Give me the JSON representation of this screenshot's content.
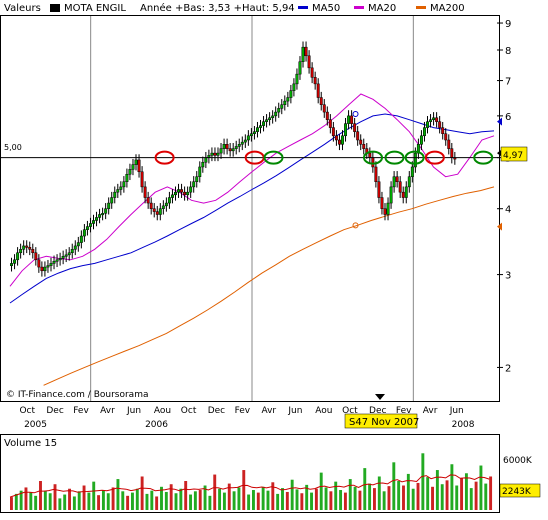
{
  "header": {
    "label": "Valeurs",
    "ticker": "MOTA ENGIL",
    "range_text": "Année +Bas: 3,53 +Haut: 5,94",
    "legend": [
      {
        "name": "MA50",
        "color": "#0000cc"
      },
      {
        "name": "MA20",
        "color": "#cc00cc"
      },
      {
        "name": "MA200",
        "color": "#e06000"
      }
    ]
  },
  "source": "© IT-Finance.com / Boursorama",
  "cursor_label": "S47 Nov 2007",
  "chart_data": [
    {
      "type": "candlestick",
      "title": "MOTA ENGIL",
      "scale": "log",
      "ylim": [
        1.75,
        9.2
      ],
      "y_ticks": [
        2,
        3,
        4,
        5,
        6,
        7,
        8,
        9
      ],
      "reference_line": {
        "value": 5.0,
        "label": "5,00"
      },
      "last_value": {
        "value": 4.97,
        "label": "4,97"
      },
      "right_markers": [
        {
          "value": 5.85,
          "color": "#0000cc"
        },
        {
          "value": 5.1,
          "color": "#000000"
        },
        {
          "value": 3.7,
          "color": "#e06000"
        }
      ],
      "x_month_labels": [
        "Oct",
        "Dec",
        "Fev",
        "Avr",
        "Jun",
        "Aou",
        "Oct",
        "Dec",
        "Fev",
        "Avr",
        "Jun",
        "Aou",
        "Oct",
        "Dec",
        "Fev",
        "Avr",
        "Jun"
      ],
      "x_year_labels": [
        "2005",
        "2006",
        "2007",
        "2008"
      ],
      "x_range_months": [
        0,
        33.5
      ],
      "grid": true,
      "price": [
        3.15,
        3.2,
        3.3,
        3.35,
        3.4,
        3.38,
        3.35,
        3.3,
        3.2,
        3.1,
        3.05,
        3.1,
        3.12,
        3.15,
        3.18,
        3.2,
        3.22,
        3.25,
        3.27,
        3.3,
        3.35,
        3.4,
        3.45,
        3.55,
        3.65,
        3.7,
        3.75,
        3.8,
        3.85,
        3.9,
        3.92,
        4.0,
        4.1,
        4.2,
        4.3,
        4.35,
        4.4,
        4.5,
        4.65,
        4.75,
        4.85,
        4.95,
        4.7,
        4.4,
        4.2,
        4.1,
        4.0,
        3.95,
        3.9,
        4.0,
        4.05,
        4.1,
        4.2,
        4.25,
        4.3,
        4.35,
        4.3,
        4.25,
        4.3,
        4.4,
        4.5,
        4.6,
        4.8,
        4.9,
        5.0,
        5.05,
        5.1,
        5.05,
        5.1,
        5.2,
        5.3,
        5.2,
        5.15,
        5.2,
        5.25,
        5.3,
        5.35,
        5.4,
        5.5,
        5.55,
        5.6,
        5.7,
        5.75,
        5.85,
        5.9,
        5.95,
        6.0,
        6.1,
        6.2,
        6.3,
        6.4,
        6.5,
        6.7,
        6.9,
        7.2,
        7.6,
        8.1,
        7.8,
        7.4,
        7.1,
        6.9,
        6.5,
        6.3,
        6.1,
        5.9,
        5.7,
        5.5,
        5.4,
        5.3,
        5.5,
        5.8,
        6.0,
        5.8,
        5.6,
        5.4,
        5.3,
        5.2,
        5.1,
        5.0,
        4.8,
        4.5,
        4.2,
        4.0,
        3.9,
        4.1,
        4.4,
        4.6,
        4.5,
        4.3,
        4.2,
        4.4,
        4.6,
        4.8,
        5.1,
        5.3,
        5.5,
        5.7,
        5.85,
        5.9,
        5.95,
        5.85,
        5.7,
        5.55,
        5.4,
        5.2,
        5.0,
        4.97
      ],
      "series": [
        {
          "name": "MA50",
          "color": "#0000cc",
          "values": [
            2.65,
            2.75,
            2.85,
            2.95,
            3.02,
            3.08,
            3.12,
            3.15,
            3.2,
            3.25,
            3.3,
            3.38,
            3.46,
            3.55,
            3.65,
            3.75,
            3.85,
            3.97,
            4.1,
            4.22,
            4.35,
            4.48,
            4.62,
            4.78,
            4.95,
            5.12,
            5.3,
            5.5,
            5.68,
            5.85,
            6.0,
            6.05,
            6.0,
            5.9,
            5.8,
            5.7,
            5.65,
            5.6,
            5.55,
            5.6,
            5.62
          ]
        },
        {
          "name": "MA20",
          "color": "#cc00cc",
          "values": [
            2.85,
            3.05,
            3.2,
            3.25,
            3.22,
            3.2,
            3.25,
            3.35,
            3.5,
            3.7,
            3.9,
            4.1,
            4.3,
            4.4,
            4.3,
            4.15,
            4.1,
            4.15,
            4.3,
            4.5,
            4.7,
            4.9,
            5.1,
            5.25,
            5.4,
            5.55,
            5.75,
            6.0,
            6.3,
            6.6,
            6.45,
            6.2,
            5.9,
            5.6,
            5.2,
            4.8,
            4.6,
            4.65,
            5.0,
            5.4,
            5.5
          ]
        },
        {
          "name": "MA200",
          "color": "#e06000",
          "values": [
            1.85,
            1.9,
            1.95,
            2.0,
            2.05,
            2.1,
            2.15,
            2.2,
            2.26,
            2.32,
            2.4,
            2.48,
            2.57,
            2.67,
            2.78,
            2.9,
            3.02,
            3.13,
            3.25,
            3.35,
            3.45,
            3.55,
            3.65,
            3.72,
            3.8,
            3.87,
            3.94,
            4.0,
            4.08,
            4.15,
            4.22,
            4.28,
            4.33,
            4.4
          ]
        }
      ],
      "annotations": [
        {
          "shape": "ellipse",
          "color": "#dd0000",
          "month": 11.5,
          "value": 5.0
        },
        {
          "shape": "ellipse",
          "color": "#dd0000",
          "month": 18.2,
          "value": 5.0
        },
        {
          "shape": "ellipse",
          "color": "#dd0000",
          "month": 31.6,
          "value": 5.0
        },
        {
          "shape": "ellipse",
          "color": "#008800",
          "month": 19.6,
          "value": 5.0
        },
        {
          "shape": "ellipse",
          "color": "#008800",
          "month": 27.0,
          "value": 5.0
        },
        {
          "shape": "ellipse",
          "color": "#008800",
          "month": 28.6,
          "value": 5.0
        },
        {
          "shape": "ellipse",
          "color": "#008800",
          "month": 30.1,
          "value": 5.0
        },
        {
          "shape": "ellipse",
          "color": "#008800",
          "month": 35.2,
          "value": 5.0
        }
      ]
    },
    {
      "type": "bar",
      "title": "Volume 15",
      "y_tick_labels": [
        "6000K",
        "2243K"
      ],
      "ma_color": "#cc0000",
      "values": [
        20,
        25,
        30,
        35,
        28,
        22,
        45,
        30,
        26,
        40,
        18,
        24,
        33,
        21,
        29,
        38,
        27,
        44,
        23,
        31,
        26,
        35,
        48,
        29,
        22,
        27,
        33,
        52,
        25,
        30,
        21,
        36,
        28,
        40,
        26,
        33,
        45,
        24,
        29,
        31,
        38,
        22,
        55,
        33,
        27,
        41,
        29,
        35,
        62,
        24,
        31,
        27,
        36,
        30,
        43,
        25,
        34,
        28,
        47,
        32,
        26,
        39,
        27,
        33,
        58,
        35,
        29,
        44,
        31,
        27,
        48,
        36,
        30,
        65,
        41,
        34,
        52,
        29,
        37,
        74,
        45,
        38,
        56,
        33,
        42,
        88,
        51,
        36,
        62,
        40,
        46,
        71,
        38,
        49,
        57,
        34,
        44,
        69,
        41,
        52
      ]
    }
  ]
}
